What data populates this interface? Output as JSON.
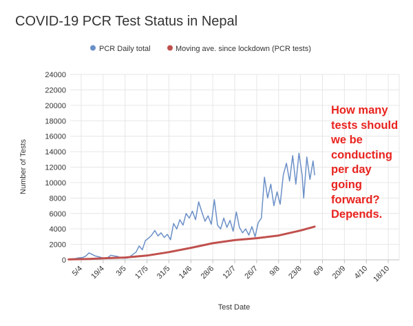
{
  "chart_data": {
    "type": "line",
    "title": "COVID-19 PCR Test Status in Nepal",
    "xlabel": "Test Date",
    "ylabel": "Number of Tests",
    "ylim": [
      0,
      24000
    ],
    "y_ticks": [
      0,
      2000,
      4000,
      6000,
      8000,
      10000,
      12000,
      14000,
      16000,
      18000,
      20000,
      22000,
      24000
    ],
    "x_range_days_from_first_tick": [
      -7,
      203
    ],
    "x_ticks": [
      "5/4",
      "19/4",
      "3/5",
      "17/5",
      "31/5",
      "14/6",
      "28/6",
      "12/7",
      "26/7",
      "9/8",
      "23/8",
      "6/9",
      "20/9",
      "4/10",
      "18/10"
    ],
    "grid": true,
    "legend_position": "top",
    "annotation": "How many\ntests should\nwe be\nconducting\nper day\ngoing\nforward?\nDepends.",
    "series": [
      {
        "name": "PCR Daily total",
        "color": "#6a8fc7",
        "points": [
          [
            "28/3",
            100
          ],
          [
            "1/4",
            150
          ],
          [
            "3/4",
            250
          ],
          [
            "6/4",
            300
          ],
          [
            "8/4",
            500
          ],
          [
            "10/4",
            900
          ],
          [
            "12/4",
            700
          ],
          [
            "14/4",
            500
          ],
          [
            "16/4",
            400
          ],
          [
            "18/4",
            300
          ],
          [
            "20/4",
            150
          ],
          [
            "22/4",
            300
          ],
          [
            "24/4",
            600
          ],
          [
            "26/4",
            500
          ],
          [
            "28/4",
            450
          ],
          [
            "30/4",
            300
          ],
          [
            "2/5",
            200
          ],
          [
            "5/5",
            250
          ],
          [
            "8/5",
            700
          ],
          [
            "10/5",
            1000
          ],
          [
            "12/5",
            1800
          ],
          [
            "14/5",
            1300
          ],
          [
            "16/5",
            2500
          ],
          [
            "18/5",
            2800
          ],
          [
            "20/5",
            3200
          ],
          [
            "22/5",
            3800
          ],
          [
            "24/5",
            3100
          ],
          [
            "26/5",
            3500
          ],
          [
            "28/5",
            2900
          ],
          [
            "30/5",
            3300
          ],
          [
            "1/6",
            2600
          ],
          [
            "3/6",
            4700
          ],
          [
            "5/6",
            4000
          ],
          [
            "7/6",
            5200
          ],
          [
            "9/6",
            4500
          ],
          [
            "11/6",
            6000
          ],
          [
            "13/6",
            5400
          ],
          [
            "15/6",
            6300
          ],
          [
            "17/6",
            5200
          ],
          [
            "19/6",
            7500
          ],
          [
            "21/6",
            6200
          ],
          [
            "23/6",
            5000
          ],
          [
            "25/6",
            5700
          ],
          [
            "27/6",
            4600
          ],
          [
            "29/6",
            7800
          ],
          [
            "1/7",
            4500
          ],
          [
            "3/7",
            4000
          ],
          [
            "5/7",
            5400
          ],
          [
            "7/7",
            4200
          ],
          [
            "9/7",
            5100
          ],
          [
            "11/7",
            3700
          ],
          [
            "13/7",
            6200
          ],
          [
            "15/7",
            4200
          ],
          [
            "17/7",
            3500
          ],
          [
            "19/7",
            4000
          ],
          [
            "21/7",
            3200
          ],
          [
            "23/7",
            4300
          ],
          [
            "25/7",
            3000
          ],
          [
            "27/7",
            4800
          ],
          [
            "29/7",
            5400
          ],
          [
            "31/7",
            10700
          ],
          [
            "2/8",
            8000
          ],
          [
            "4/8",
            9800
          ],
          [
            "6/8",
            7000
          ],
          [
            "8/8",
            8800
          ],
          [
            "10/8",
            7200
          ],
          [
            "12/8",
            11000
          ],
          [
            "14/8",
            12500
          ],
          [
            "16/8",
            10200
          ],
          [
            "18/8",
            13500
          ],
          [
            "20/8",
            9800
          ],
          [
            "22/8",
            13800
          ],
          [
            "24/8",
            11000
          ],
          [
            "25/8",
            8000
          ],
          [
            "27/8",
            13300
          ],
          [
            "29/8",
            10400
          ],
          [
            "31/8",
            12800
          ],
          [
            "1/9",
            11000
          ]
        ]
      },
      {
        "name": "Moving ave. since lockdown (PCR tests)",
        "color": "#c0504d",
        "points": [
          [
            "28/3",
            50
          ],
          [
            "10/4",
            120
          ],
          [
            "19/4",
            200
          ],
          [
            "3/5",
            300
          ],
          [
            "17/5",
            550
          ],
          [
            "31/5",
            1000
          ],
          [
            "14/6",
            1550
          ],
          [
            "28/6",
            2150
          ],
          [
            "12/7",
            2550
          ],
          [
            "26/7",
            2800
          ],
          [
            "9/8",
            3150
          ],
          [
            "23/8",
            3800
          ],
          [
            "1/9",
            4300
          ]
        ]
      }
    ]
  }
}
